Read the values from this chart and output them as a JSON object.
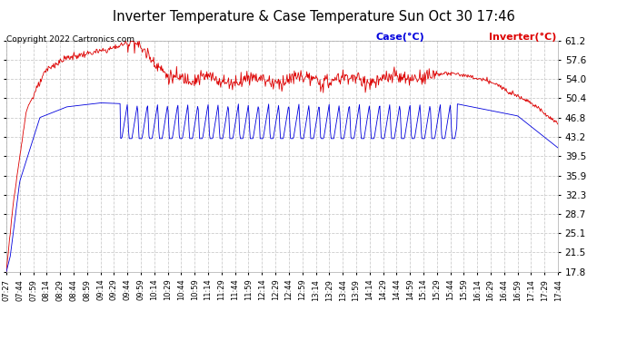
{
  "title": "Inverter Temperature & Case Temperature Sun Oct 30 17:46",
  "copyright": "Copyright 2022 Cartronics.com",
  "legend_case": "Case(°C)",
  "legend_inverter": "Inverter(°C)",
  "yticks": [
    17.8,
    21.5,
    25.1,
    28.7,
    32.3,
    35.9,
    39.5,
    43.2,
    46.8,
    50.4,
    54.0,
    57.6,
    61.2
  ],
  "ymin": 17.8,
  "ymax": 61.2,
  "xtick_labels": [
    "07:27",
    "07:44",
    "07:59",
    "08:14",
    "08:29",
    "08:44",
    "08:59",
    "09:14",
    "09:29",
    "09:44",
    "09:59",
    "10:14",
    "10:29",
    "10:44",
    "10:59",
    "11:14",
    "11:29",
    "11:44",
    "11:59",
    "12:14",
    "12:29",
    "12:44",
    "12:59",
    "13:14",
    "13:29",
    "13:44",
    "13:59",
    "14:14",
    "14:29",
    "14:44",
    "14:59",
    "15:14",
    "15:29",
    "15:44",
    "15:59",
    "16:14",
    "16:29",
    "16:44",
    "16:59",
    "17:14",
    "17:29",
    "17:44"
  ],
  "bg_color": "#ffffff",
  "plot_bg_color": "#ffffff",
  "grid_color": "#cccccc",
  "case_color": "#0000dd",
  "inverter_color": "#dd0000",
  "title_color": "#000000",
  "copyright_color": "#000000",
  "legend_case_color": "#0000dd",
  "legend_inverter_color": "#dd0000"
}
